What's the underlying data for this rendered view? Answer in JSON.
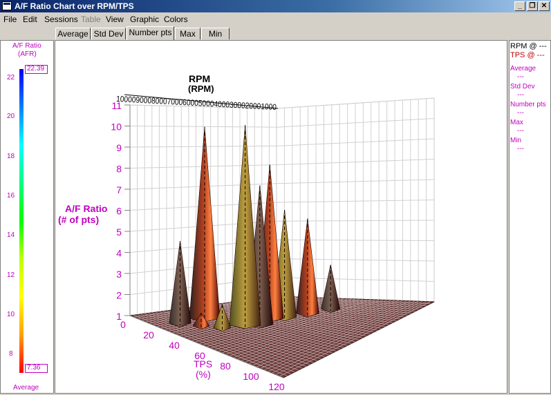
{
  "window": {
    "title": "A/F Ratio Chart over RPM/TPS",
    "minimize": "_",
    "restore": "❐",
    "close": "✕"
  },
  "menu": [
    {
      "label": "File",
      "disabled": false
    },
    {
      "label": "Edit",
      "disabled": false
    },
    {
      "label": "Sessions",
      "disabled": false
    },
    {
      "label": "Table",
      "disabled": true
    },
    {
      "label": "View",
      "disabled": false
    },
    {
      "label": "Graphic",
      "disabled": false
    },
    {
      "label": "Colors",
      "disabled": false
    }
  ],
  "tabs": [
    {
      "label": "Average",
      "active": false
    },
    {
      "label": "Std Dev",
      "active": false
    },
    {
      "label": "Number pts",
      "active": true
    },
    {
      "label": "Max",
      "active": false
    },
    {
      "label": "Min",
      "active": false
    }
  ],
  "legend": {
    "title": "A/F Ratio",
    "unit": "(AFR)",
    "max_value": "22.39",
    "min_value": "7.36",
    "ticks": [
      "22",
      "20",
      "18",
      "16",
      "14",
      "12",
      "10",
      "8"
    ],
    "footer": "Average",
    "gradient_colors": [
      "#0000ff",
      "#0080ff",
      "#00ffff",
      "#00ff80",
      "#00ff00",
      "#c0ff00",
      "#ffff00",
      "#ffa000",
      "#ff0000"
    ]
  },
  "chart": {
    "rpm_title": "RPM",
    "rpm_unit": "(RPM)",
    "rpm_ticks_text": "10000900080007000600050004000300020001000",
    "z_title": "A/F Ratio",
    "z_unit": "(# of pts)",
    "z_ticks": [
      "11",
      "10",
      "9",
      "8",
      "7",
      "6",
      "5",
      "4",
      "3",
      "2",
      "1"
    ],
    "tps_title": "TPS",
    "tps_unit": "(%)",
    "tps_ticks": [
      "0",
      "20",
      "40",
      "60",
      "80",
      "100",
      "120"
    ]
  },
  "chart_data": {
    "type": "surface",
    "x_axis": {
      "label": "TPS",
      "unit": "(%)",
      "range": [
        0,
        120
      ],
      "ticks": [
        0,
        20,
        40,
        60,
        80,
        100,
        120
      ]
    },
    "y_axis": {
      "label": "RPM",
      "unit": "(RPM)",
      "range": [
        1000,
        10000
      ],
      "ticks": [
        1000,
        2000,
        3000,
        4000,
        5000,
        6000,
        7000,
        8000,
        9000,
        10000
      ]
    },
    "z_axis": {
      "label": "A/F Ratio",
      "unit": "(# of pts)",
      "range": [
        1,
        11
      ],
      "ticks": [
        1,
        2,
        3,
        4,
        5,
        6,
        7,
        8,
        9,
        10,
        11
      ]
    },
    "color_scale": {
      "label": "A/F Ratio",
      "unit": "(AFR)",
      "min": 7.36,
      "max": 22.39
    },
    "grid": true,
    "peaks": [
      {
        "tps": 20,
        "rpm": 7000,
        "value": 10.0
      },
      {
        "tps": 20,
        "rpm": 8500,
        "value": 4.8
      },
      {
        "tps": 45,
        "rpm": 6500,
        "value": 10.4
      },
      {
        "tps": 45,
        "rpm": 5000,
        "value": 8.2
      },
      {
        "tps": 50,
        "rpm": 6000,
        "value": 7.5
      },
      {
        "tps": 50,
        "rpm": 4500,
        "value": 6.0
      },
      {
        "tps": 55,
        "rpm": 3500,
        "value": 5.4
      },
      {
        "tps": 60,
        "rpm": 2500,
        "value": 3.0
      },
      {
        "tps": 40,
        "rpm": 7500,
        "value": 2.0
      },
      {
        "tps": 30,
        "rpm": 8000,
        "value": 1.5
      }
    ]
  },
  "right": {
    "rpm_line": "RPM @ ---",
    "tps_line": "TPS @ ---",
    "items": [
      {
        "label": "Average",
        "value": "---"
      },
      {
        "label": "Std Dev",
        "value": "---"
      },
      {
        "label": "Number pts",
        "value": "---"
      },
      {
        "label": "Max",
        "value": "---"
      },
      {
        "label": "Min",
        "value": "---"
      }
    ]
  }
}
